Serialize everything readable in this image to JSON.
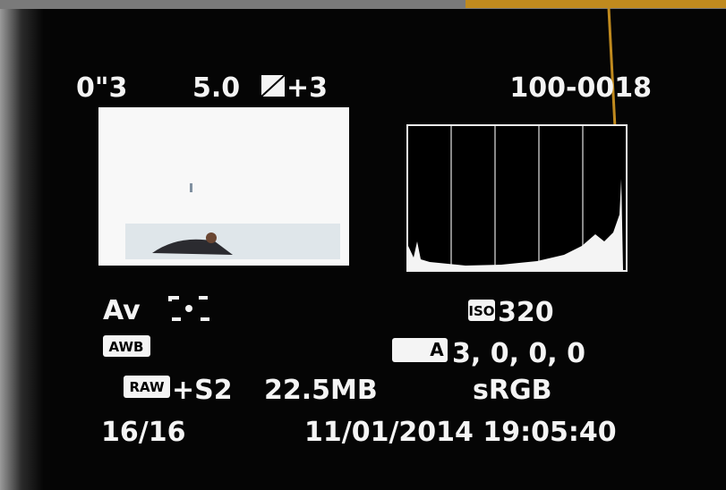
{
  "top": {
    "shutter": "0\"3",
    "aperture": "5.0",
    "exposure_comp": "+3",
    "file_number": "100-0018"
  },
  "shooting_mode": "Av",
  "iso": {
    "icon": "ISO",
    "value": "320"
  },
  "white_balance": "AWB",
  "picture_style": {
    "icon": "A",
    "values": "3, 0, 0, 0"
  },
  "quality": {
    "icon": "RAW",
    "value": "+S2"
  },
  "file_size": "22.5MB",
  "color_space": "sRGB",
  "image_count": "16/16",
  "datetime": "11/01/2014 19:05:40"
}
